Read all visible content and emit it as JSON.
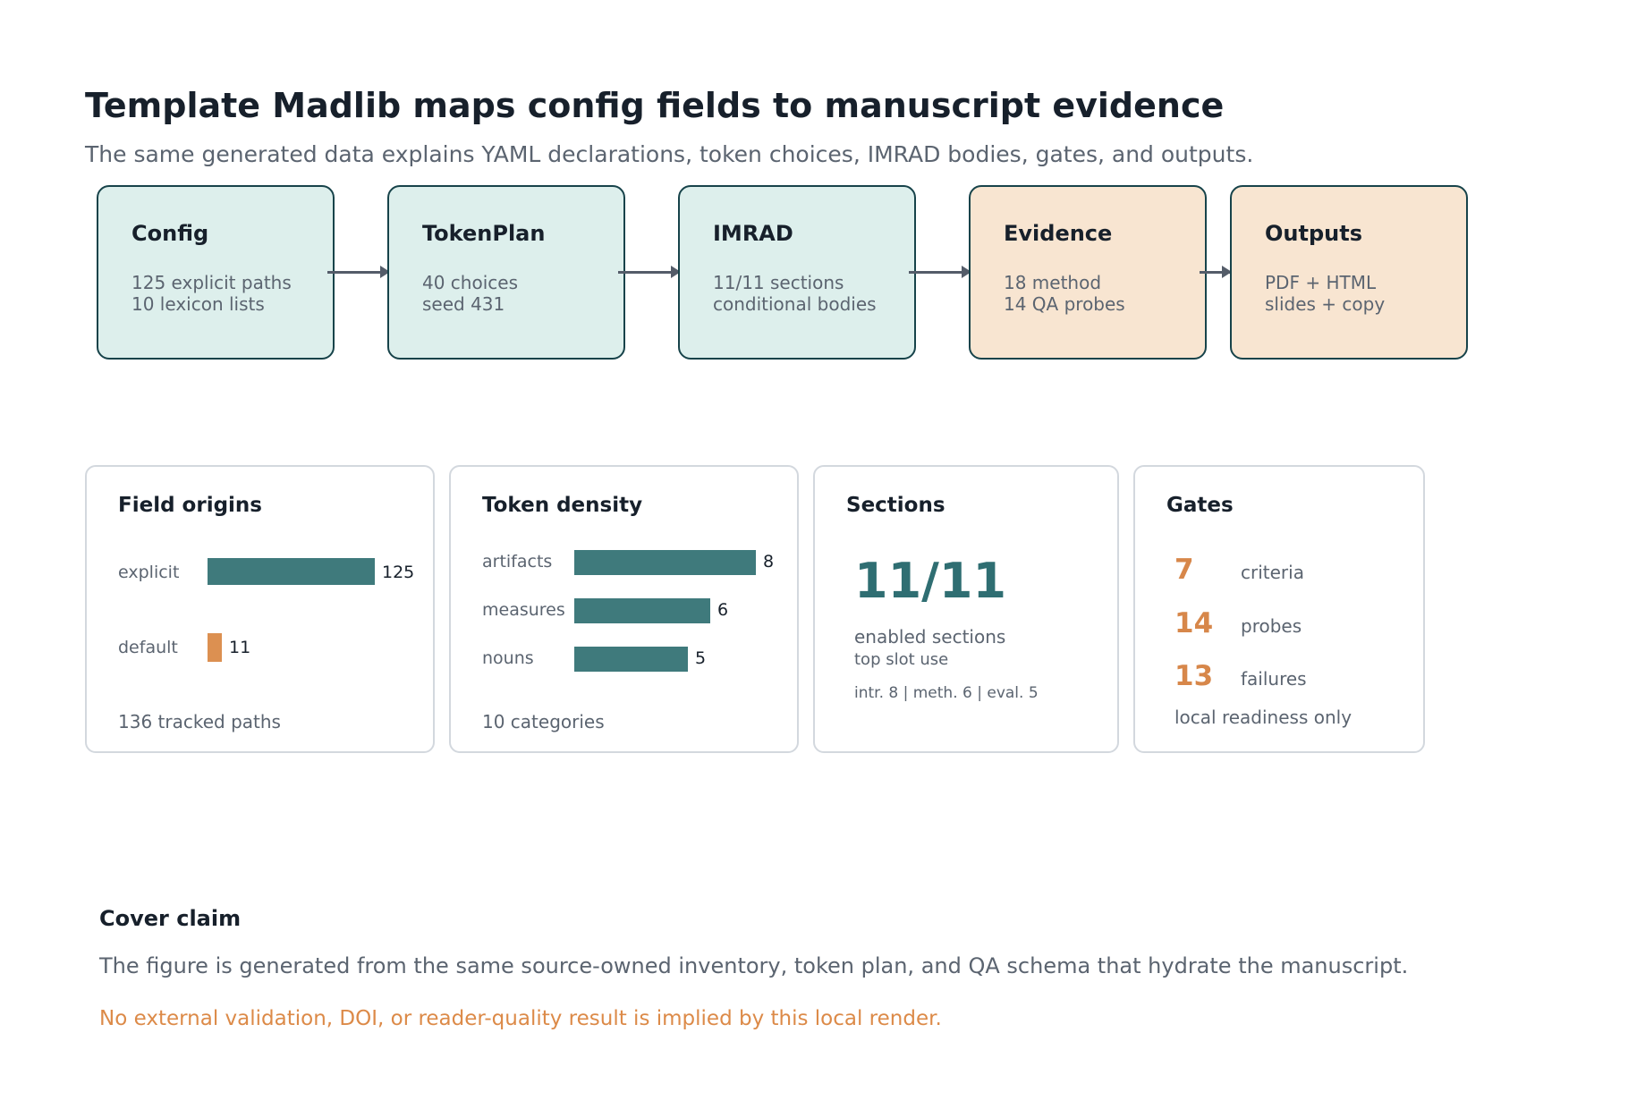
{
  "header": {
    "title": "Template Madlib maps config fields to manuscript evidence",
    "subtitle": "The same generated data explains YAML declarations, token choices, IMRAD bodies, gates, and outputs."
  },
  "pipeline": [
    {
      "title": "Config",
      "lines": [
        "125 explicit paths",
        "10 lexicon lists"
      ],
      "color": "#ddefec"
    },
    {
      "title": "TokenPlan",
      "lines": [
        "40 choices",
        "seed 431"
      ],
      "color": "#ddefec"
    },
    {
      "title": "IMRAD",
      "lines": [
        "11/11 sections",
        "conditional bodies"
      ],
      "color": "#ddefec"
    },
    {
      "title": "Evidence",
      "lines": [
        "18 method",
        "14 QA probes"
      ],
      "color": "#f8e5d1"
    },
    {
      "title": "Outputs",
      "lines": [
        "PDF + HTML",
        "slides + copy"
      ],
      "color": "#f8e5d1"
    }
  ],
  "field_origins": {
    "title": "Field origins",
    "rows": [
      {
        "label": "explicit",
        "value": 125,
        "value_label": "125",
        "color": "#3f7a7c"
      },
      {
        "label": "default",
        "value": 11,
        "value_label": "11",
        "color": "#dc9051"
      }
    ],
    "footer": "136 tracked paths"
  },
  "token_density": {
    "title": "Token density",
    "rows": [
      {
        "label": "artifacts",
        "value": 8,
        "value_label": "8"
      },
      {
        "label": "measures",
        "value": 6,
        "value_label": "6"
      },
      {
        "label": "nouns",
        "value": 5,
        "value_label": "5"
      }
    ],
    "footer": "10 categories"
  },
  "sections": {
    "title": "Sections",
    "big": "11/11",
    "caption": "enabled sections",
    "sub": "top slot use",
    "breakdown": "intr. 8 | meth. 6 | eval. 5"
  },
  "gates": {
    "title": "Gates",
    "items": [
      {
        "number": "7",
        "label": "criteria"
      },
      {
        "number": "14",
        "label": "probes"
      },
      {
        "number": "13",
        "label": "failures"
      }
    ],
    "footer": "local readiness only"
  },
  "claim": {
    "title": "Cover claim",
    "body": "The figure is generated from the same source-owned inventory, token plan, and QA schema that hydrate the manuscript.",
    "note": "No external validation, DOI, or reader-quality result is implied by this local render."
  },
  "colors": {
    "teal_bar": "#3f7a7c",
    "orange_accent": "#dc9051",
    "stage_border": "#17434a"
  }
}
